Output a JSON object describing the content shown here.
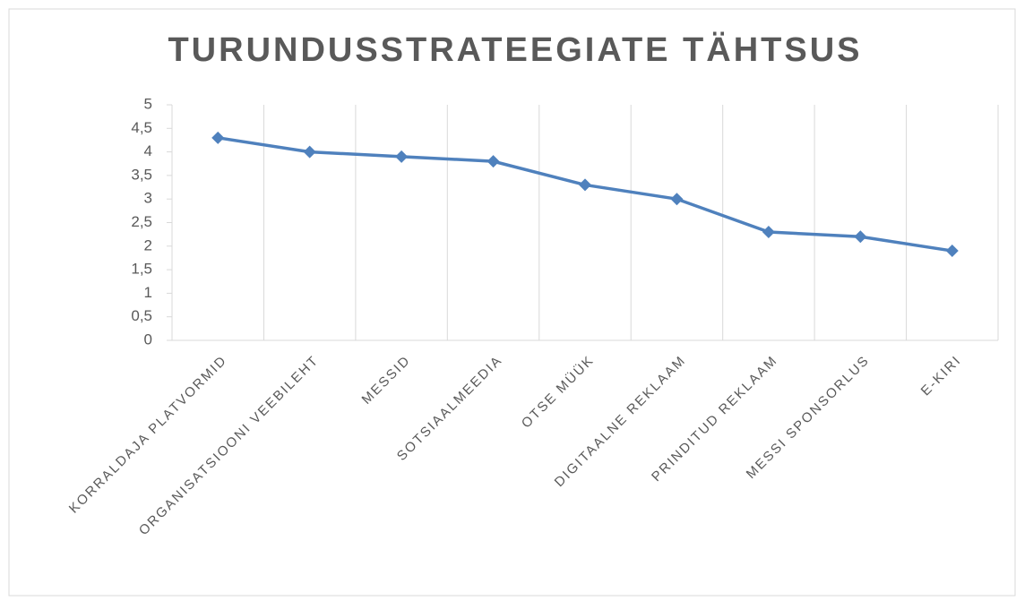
{
  "chart_data": {
    "type": "line",
    "title": "TURUNDUSSTRATEEGIATE TÄHTSUS",
    "categories": [
      "KORRALDAJA PLATVORMID",
      "ORGANISATSIOONI VEEBILEHT",
      "MESSID",
      "SOTSIAALMEEDIA",
      "OTSE MÜÜK",
      "DIGITAALNE REKLAAM",
      "PRINDITUD REKLAAM",
      "MESSI SPONSORLUS",
      "E-KIRI"
    ],
    "series": [
      {
        "name": "Tähtsus",
        "color": "#4f81bd",
        "values": [
          4.3,
          4.0,
          3.9,
          3.8,
          3.3,
          3.0,
          2.3,
          2.2,
          1.9
        ]
      }
    ],
    "ylim": [
      0,
      5
    ],
    "yticks": [
      0,
      {
        "value": 0.5,
        "label": "0,5"
      },
      1,
      {
        "value": 1.5,
        "label": "1,5"
      },
      2,
      {
        "value": 2.5,
        "label": "2,5"
      },
      3,
      {
        "value": 3.5,
        "label": "3,5"
      },
      4,
      {
        "value": 4.5,
        "label": "4,5"
      },
      5
    ],
    "grid": "vertical"
  }
}
